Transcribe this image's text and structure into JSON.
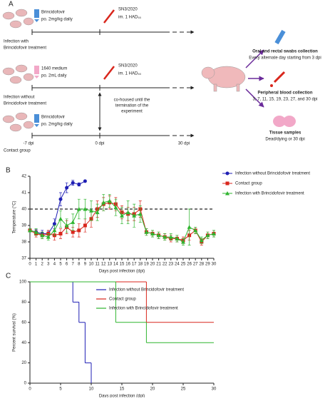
{
  "diagram": {
    "label": "A",
    "row1": {
      "drug": "Brincidofovir",
      "dose": "po. 2mg/kg daily",
      "virus": "SN3/2020",
      "route": "im. 1 HAD₅₀",
      "group": [
        "Infection with",
        "Brincidofovir treatment"
      ]
    },
    "row2": {
      "drug": "1640 medium",
      "dose": "po. 2mL daily",
      "virus": "SN3/2020",
      "route": "im. 1 HAD₅₀",
      "group": [
        "Infection without",
        "Brincidofovir treatment"
      ],
      "cohoused": [
        "co-housed until the",
        "termination of the",
        "experiment"
      ]
    },
    "row3": {
      "drug": "Brincidofovir",
      "dose": "po. 2mg/kg daily",
      "group": "Contact group"
    },
    "timeline": [
      "-7 dpi",
      "0 dpi",
      "30 dpi"
    ],
    "samples": [
      {
        "title": "Oral and rectal swabs collection",
        "detail": "Every alternate day starting from 3 dpi"
      },
      {
        "title": "Peripheral blood collection",
        "detail": "3, 7, 11, 15, 19, 23, 27, and 30 dpi"
      },
      {
        "title": "Tissue samples",
        "detail": "Dead/dying or 30 dpi"
      }
    ]
  },
  "chart_data": [
    {
      "type": "line",
      "panel_label": "B",
      "xlabel": "Days post infection (dpi)",
      "ylabel": "Temperature (°C)",
      "xlim": [
        0,
        30
      ],
      "ylim": [
        37,
        42
      ],
      "threshold": 40,
      "xticks": [
        0,
        1,
        2,
        3,
        4,
        5,
        6,
        7,
        8,
        9,
        10,
        11,
        12,
        13,
        14,
        15,
        16,
        17,
        18,
        19,
        20,
        21,
        22,
        23,
        24,
        25,
        26,
        27,
        28,
        29,
        30
      ],
      "yticks": [
        37,
        38,
        39,
        40,
        41,
        42
      ],
      "x": [
        0,
        1,
        2,
        3,
        4,
        5,
        6,
        7,
        8,
        9,
        10,
        11,
        12,
        13,
        14,
        15,
        16,
        17,
        18,
        19,
        20,
        21,
        22,
        23,
        24,
        25,
        26,
        27,
        28,
        29,
        30
      ],
      "series": [
        {
          "name": "Infection without Brincidofovir treatment",
          "color": "#1f1fb4",
          "marker": "circle",
          "values": [
            38.7,
            38.6,
            38.5,
            38.5,
            39.1,
            40.6,
            41.3,
            41.6,
            41.5,
            41.7,
            null,
            null,
            null,
            null,
            null,
            null,
            null,
            null,
            null,
            null,
            null,
            null,
            null,
            null,
            null,
            null,
            null,
            null,
            null,
            null,
            null
          ],
          "errors": [
            0.1,
            0.15,
            0.2,
            0.15,
            0.3,
            0.4,
            0.3,
            0.15,
            0.1,
            0.05,
            null,
            null,
            null,
            null,
            null,
            null,
            null,
            null,
            null,
            null,
            null,
            null,
            null,
            null,
            null,
            null,
            null,
            null,
            null,
            null,
            null
          ]
        },
        {
          "name": "Contact group",
          "color": "#d9261c",
          "marker": "square",
          "values": [
            38.7,
            38.5,
            38.4,
            38.5,
            38.4,
            38.5,
            38.9,
            38.6,
            38.7,
            39.0,
            39.4,
            40.0,
            40.3,
            40.4,
            40.3,
            39.8,
            39.7,
            39.7,
            40.0,
            38.6,
            38.5,
            38.4,
            38.3,
            38.2,
            38.2,
            38.1,
            38.4,
            38.7,
            38.0,
            38.4,
            38.5
          ],
          "errors": [
            0.1,
            0.2,
            0.2,
            0.2,
            0.3,
            0.3,
            0.4,
            0.3,
            0.4,
            0.4,
            0.5,
            0.5,
            0.4,
            0.4,
            0.4,
            0.4,
            0.4,
            0.4,
            0.5,
            0.2,
            0.2,
            0.2,
            0.2,
            0.2,
            0.2,
            0.2,
            0.3,
            0.2,
            0.2,
            0.2,
            0.2
          ]
        },
        {
          "name": "Infection with Brincidofovir treatment",
          "color": "#2fb52f",
          "marker": "triangle",
          "values": [
            38.7,
            38.6,
            38.4,
            38.3,
            38.7,
            39.4,
            39.0,
            39.2,
            40.0,
            40.0,
            39.9,
            39.8,
            40.4,
            40.5,
            40.1,
            39.6,
            39.8,
            39.6,
            39.7,
            38.6,
            38.5,
            38.4,
            38.3,
            38.3,
            38.2,
            38.0,
            38.9,
            38.7,
            38.1,
            38.4,
            38.5
          ],
          "errors": [
            0.1,
            0.2,
            0.2,
            0.2,
            0.3,
            0.5,
            0.4,
            0.5,
            0.6,
            0.6,
            0.6,
            0.5,
            0.5,
            0.4,
            0.5,
            0.5,
            0.7,
            0.7,
            0.5,
            0.2,
            0.2,
            0.2,
            0.2,
            0.2,
            0.2,
            0.2,
            1.1,
            0.2,
            0.2,
            0.2,
            0.2
          ]
        }
      ],
      "legend": "right"
    },
    {
      "type": "step",
      "panel_label": "C",
      "xlabel": "Days post infection (dpi)",
      "ylabel": "Percent survival (%)",
      "xlim": [
        0,
        30
      ],
      "ylim": [
        0,
        100
      ],
      "xticks": [
        0,
        5,
        10,
        15,
        20,
        25,
        30
      ],
      "yticks": [
        0,
        20,
        40,
        60,
        80,
        100
      ],
      "series": [
        {
          "name": "Infection without Brincidofovir treatment",
          "color": "#1f1fb4",
          "x": [
            0,
            7,
            8,
            9,
            10
          ],
          "values": [
            100,
            80,
            60,
            20,
            0
          ]
        },
        {
          "name": "Contact group",
          "color": "#d9261c",
          "x": [
            0,
            19,
            30
          ],
          "values": [
            100,
            60,
            60
          ]
        },
        {
          "name": "Infection with Brincidofovir treatment",
          "color": "#2fb52f",
          "x": [
            0,
            14,
            19,
            30
          ],
          "values": [
            100,
            60,
            40,
            40
          ]
        }
      ],
      "legend": "upper right"
    }
  ]
}
